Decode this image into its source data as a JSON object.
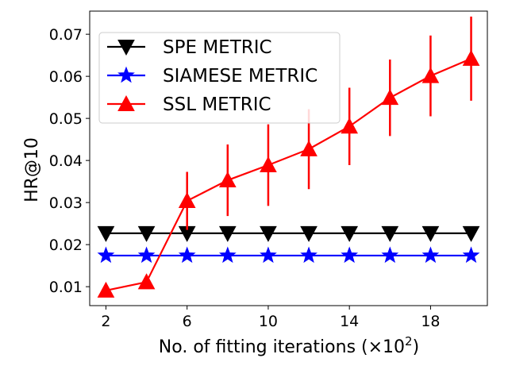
{
  "chart_data": {
    "type": "line",
    "title": "",
    "xlabel": "No. of fitting iterations (×10",
    "xlabel_exponent": "2",
    "xlabel_close": ")",
    "ylabel": "HR@10",
    "x": [
      2,
      4,
      6,
      8,
      10,
      12,
      14,
      16,
      18,
      20
    ],
    "xlim": [
      1.2,
      20.8
    ],
    "ylim": [
      0.0055,
      0.0755
    ],
    "xticks": [
      2,
      6,
      10,
      14,
      18
    ],
    "yticks": [
      0.01,
      0.02,
      0.03,
      0.04,
      0.05,
      0.06,
      0.07
    ],
    "ytick_labels": [
      "0.01",
      "0.02",
      "0.03",
      "0.04",
      "0.05",
      "0.06",
      "0.07"
    ],
    "grid": false,
    "legend_position": "top-left",
    "series": [
      {
        "name": "SPE METRIC",
        "color": "#000000",
        "marker": "triangle-down",
        "values": [
          0.0227,
          0.0227,
          0.0227,
          0.0227,
          0.0227,
          0.0227,
          0.0227,
          0.0227,
          0.0227,
          0.0227
        ]
      },
      {
        "name": "SIAMESE METRIC",
        "color": "#0000ff",
        "marker": "star",
        "values": [
          0.0174,
          0.0174,
          0.0174,
          0.0174,
          0.0174,
          0.0174,
          0.0174,
          0.0174,
          0.0174,
          0.0174
        ]
      },
      {
        "name": "SSL METRIC",
        "color": "#ff0000",
        "marker": "triangle-up",
        "values": [
          0.0091,
          0.0111,
          0.0304,
          0.0353,
          0.0389,
          0.0427,
          0.0481,
          0.0549,
          0.0601,
          0.0642
        ],
        "error": [
          0,
          0,
          0.0069,
          0.0085,
          0.0097,
          0.0095,
          0.0092,
          0.0091,
          0.0096,
          0.01
        ]
      }
    ]
  }
}
